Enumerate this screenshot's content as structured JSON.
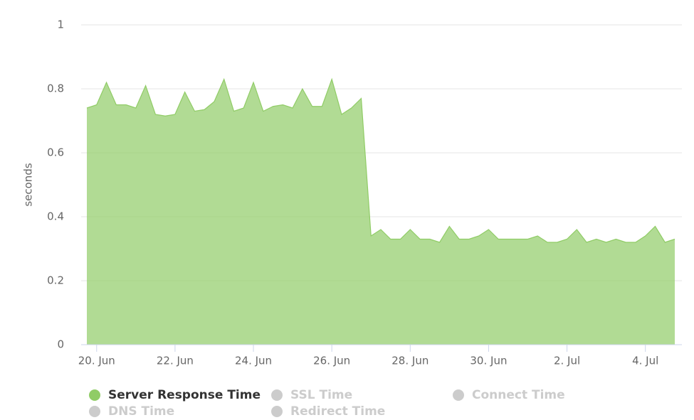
{
  "chart_data": {
    "type": "area",
    "y_axis_label": "seconds",
    "categories": [
      null,
      "20. Jun",
      null,
      null,
      null,
      null,
      null,
      null,
      null,
      "22. Jun",
      null,
      null,
      null,
      null,
      null,
      null,
      null,
      "24. Jun",
      null,
      null,
      null,
      null,
      null,
      null,
      null,
      "26. Jun",
      null,
      null,
      null,
      null,
      null,
      null,
      null,
      "28. Jun",
      null,
      null,
      null,
      null,
      null,
      null,
      null,
      "30. Jun",
      null,
      null,
      null,
      null,
      null,
      null,
      null,
      "2. Jul",
      null,
      null,
      null,
      null,
      null,
      null,
      null,
      "4. Jul",
      null,
      null,
      null
    ],
    "series": [
      {
        "name": "Server Response Time",
        "color": "#90cc66",
        "values": [
          0.74,
          0.75,
          0.82,
          0.75,
          0.75,
          0.74,
          0.81,
          0.72,
          0.715,
          0.72,
          0.79,
          0.73,
          0.735,
          0.76,
          0.83,
          0.73,
          0.74,
          0.82,
          0.73,
          0.745,
          0.75,
          0.74,
          0.8,
          0.745,
          0.745,
          0.83,
          0.72,
          0.74,
          0.77,
          0.34,
          0.36,
          0.33,
          0.33,
          0.36,
          0.33,
          0.33,
          0.32,
          0.37,
          0.33,
          0.33,
          0.34,
          0.36,
          0.33,
          0.33,
          0.33,
          0.33,
          0.34,
          0.32,
          0.32,
          0.33,
          0.36,
          0.32,
          0.33,
          0.32,
          0.33,
          0.32,
          0.32,
          0.34,
          0.37,
          0.32,
          0.33
        ]
      },
      {
        "name": "SSL Time",
        "color": "#cccccc",
        "visible": false
      },
      {
        "name": "Connect Time",
        "color": "#cccccc",
        "visible": false
      },
      {
        "name": "DNS Time",
        "color": "#cccccc",
        "visible": false
      },
      {
        "name": "Redirect Time",
        "color": "#cccccc",
        "visible": false
      }
    ],
    "ylim": [
      0,
      1
    ],
    "yticks": [
      0,
      0.2,
      0.4,
      0.6,
      0.8,
      1
    ],
    "grid": true
  }
}
